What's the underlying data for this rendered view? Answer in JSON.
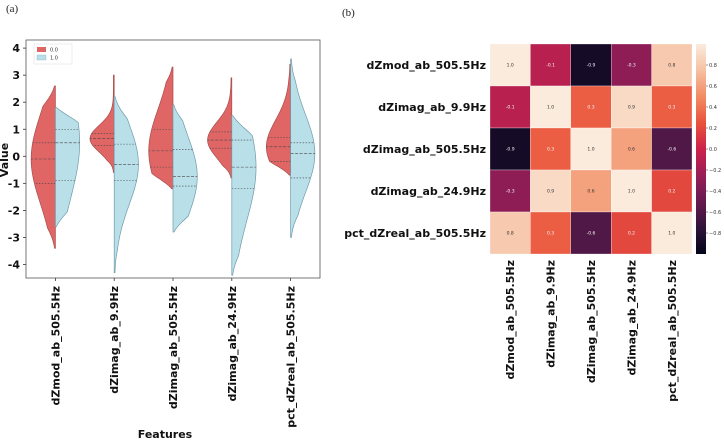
{
  "panel_a_label": "(a)",
  "panel_b_label": "(b)",
  "colors": {
    "series_0": "#e06666",
    "series_1": "#b9dfe9"
  },
  "chart_data": [
    {
      "type": "violin",
      "xlabel": "Features",
      "ylabel": "Value",
      "ylim": [
        -4.5,
        4.3
      ],
      "yticks": [
        -4,
        -3,
        -2,
        -1,
        0,
        1,
        2,
        3,
        4
      ],
      "categories": [
        "dZmod_ab_505.5Hz",
        "dZimag_ab_9.9Hz",
        "dZimag_ab_505.5Hz",
        "dZimag_ab_24.9Hz",
        "pct_dZreal_ab_505.5Hz"
      ],
      "legend_position": "top-left",
      "series": [
        {
          "name": "0.0",
          "violins": [
            {
              "min": -3.4,
              "max": 2.6,
              "q1": -1.0,
              "median": -0.1,
              "q3": 0.5
            },
            {
              "min": -0.6,
              "max": 3.0,
              "q1": 0.4,
              "median": 0.65,
              "q3": 0.85
            },
            {
              "min": -1.2,
              "max": 3.3,
              "q1": -0.4,
              "median": 0.2,
              "q3": 1.0
            },
            {
              "min": -0.8,
              "max": 2.9,
              "q1": 0.3,
              "median": 0.6,
              "q3": 0.9
            },
            {
              "min": -0.7,
              "max": 3.4,
              "q1": -0.2,
              "median": 0.35,
              "q3": 0.7
            }
          ]
        },
        {
          "name": "1.0",
          "violins": [
            {
              "min": -2.6,
              "max": 1.8,
              "q1": -0.9,
              "median": 0.5,
              "q3": 1.0
            },
            {
              "min": -4.3,
              "max": 2.2,
              "q1": -0.9,
              "median": -0.3,
              "q3": 0.45
            },
            {
              "min": -2.8,
              "max": 1.9,
              "q1": -1.1,
              "median": -0.75,
              "q3": 0.25
            },
            {
              "min": -4.4,
              "max": 1.5,
              "q1": -1.2,
              "median": -0.4,
              "q3": 0.6
            },
            {
              "min": -3.0,
              "max": 3.6,
              "q1": -0.8,
              "median": 0.1,
              "q3": 0.5
            }
          ]
        }
      ]
    },
    {
      "type": "heatmap",
      "rows": [
        "dZmod_ab_505.5Hz",
        "dZimag_ab_9.9Hz",
        "dZimag_ab_505.5Hz",
        "dZimag_ab_24.9Hz",
        "pct_dZreal_ab_505.5Hz"
      ],
      "columns": [
        "dZmod_ab_505.5Hz",
        "dZimag_ab_9.9Hz",
        "dZimag_ab_505.5Hz",
        "dZimag_ab_24.9Hz",
        "pct_dZreal_ab_505.5Hz"
      ],
      "values": [
        [
          1.0,
          -0.1,
          -0.9,
          -0.3,
          0.8
        ],
        [
          -0.1,
          1.0,
          0.3,
          0.9,
          0.3
        ],
        [
          -0.9,
          0.3,
          1.0,
          0.6,
          -0.6
        ],
        [
          -0.3,
          0.9,
          0.6,
          1.0,
          0.2
        ],
        [
          0.8,
          0.3,
          -0.6,
          0.2,
          1.0
        ]
      ],
      "cell_labels": [
        [
          "1.0",
          "-0.1",
          "-0.9",
          "-0.3",
          "0.8"
        ],
        [
          "-0.1",
          "1.0",
          "0.3",
          "0.9",
          "0.3"
        ],
        [
          "-0.9",
          "0.3",
          "1.0",
          "0.6",
          "-0.6"
        ],
        [
          "-0.3",
          "0.9",
          "0.6",
          "1.0",
          "0.2"
        ],
        [
          "0.8",
          "0.3",
          "-0.6",
          "0.2",
          "1.0"
        ]
      ],
      "colorbar": {
        "vmin": -1.0,
        "vmax": 1.0,
        "ticks": [
          0.8,
          0.6,
          0.4,
          0.2,
          0.0,
          -0.2,
          -0.4,
          -0.6,
          -0.8
        ],
        "tick_labels": [
          "0.8",
          "0.6",
          "0.4",
          "0.2",
          "0.0",
          "−0.2",
          "−0.4",
          "−0.6",
          "−0.8"
        ]
      },
      "colormap": "rocket"
    }
  ]
}
